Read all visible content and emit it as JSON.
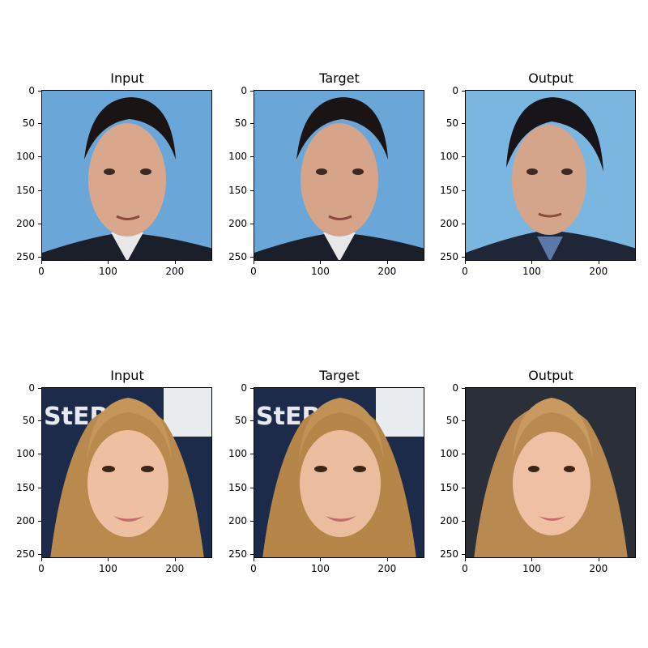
{
  "figure": {
    "rows": [
      {
        "panels": [
          {
            "title": "Input",
            "image": "face-man-dark-hair-suit-input"
          },
          {
            "title": "Target",
            "image": "face-man-dark-hair-suit-target"
          },
          {
            "title": "Output",
            "image": "face-man-dark-hair-suit-output"
          }
        ]
      },
      {
        "panels": [
          {
            "title": "Input",
            "image": "face-woman-blonde-hair-input"
          },
          {
            "title": "Target",
            "image": "face-woman-blonde-hair-target"
          },
          {
            "title": "Output",
            "image": "face-woman-blonde-hair-output"
          }
        ]
      }
    ],
    "y_ticks": [
      "0",
      "50",
      "100",
      "150",
      "200",
      "250"
    ],
    "x_ticks": [
      "0",
      "100",
      "200"
    ]
  },
  "colors": {
    "sky_blue": "#6fa8d6",
    "suit_dark": "#1b1f2a",
    "skin_man": "#d9a88c",
    "hair_dark": "#1a1414",
    "skin_woman": "#efbfa2",
    "hair_blonde": "#b98a4e",
    "bg_dark": "#2a2f38"
  }
}
